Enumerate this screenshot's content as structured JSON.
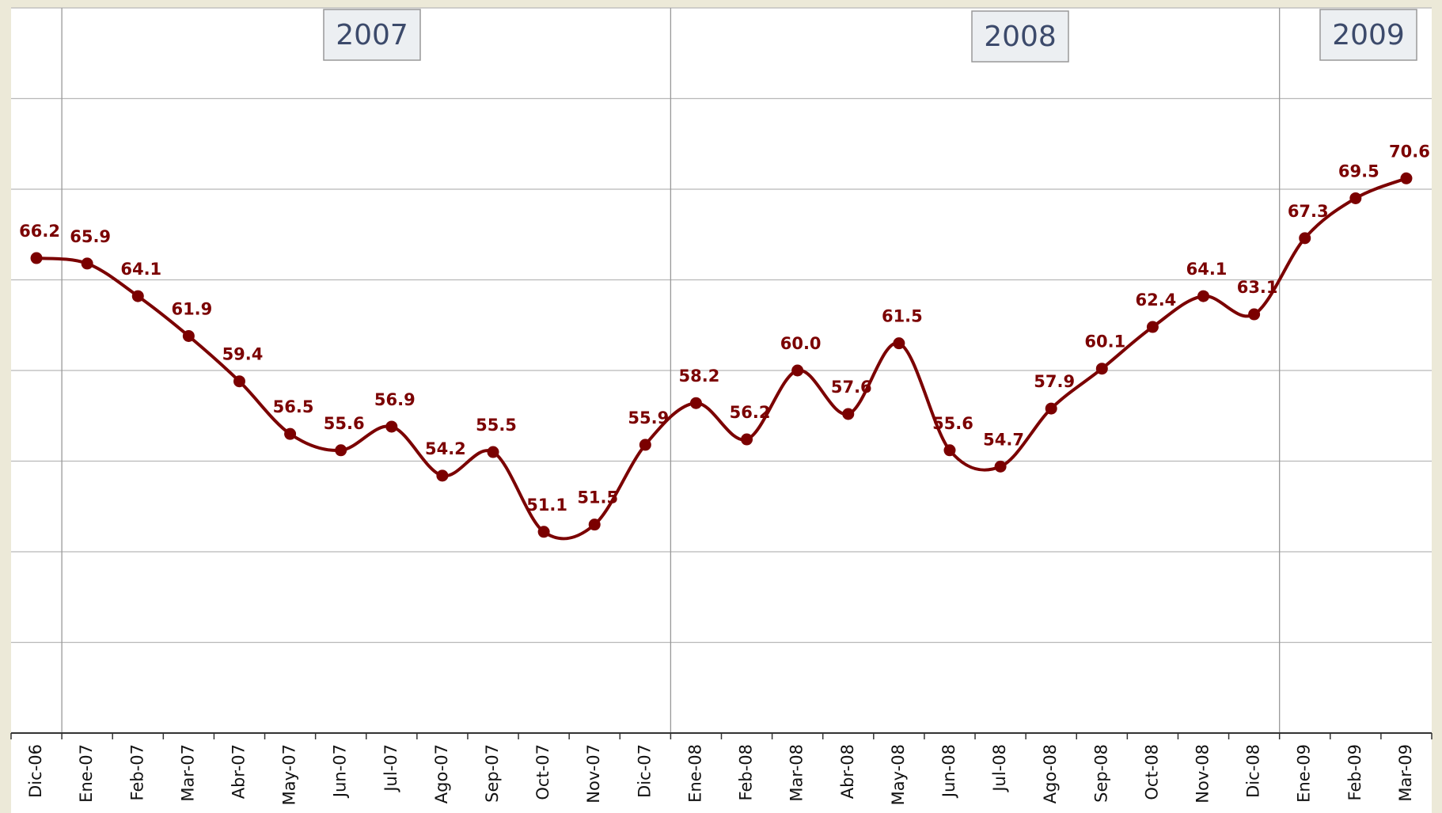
{
  "chart_data": {
    "type": "line",
    "categories": [
      "Dic-06",
      "Ene-07",
      "Feb-07",
      "Mar-07",
      "Abr-07",
      "May-07",
      "Jun-07",
      "Jul-07",
      "Ago-07",
      "Sep-07",
      "Oct-07",
      "Nov-07",
      "Dic-07",
      "Ene-08",
      "Feb-08",
      "Mar-08",
      "Abr-08",
      "May-08",
      "Jun-08",
      "Jul-08",
      "Ago-08",
      "Sep-08",
      "Oct-08",
      "Nov-08",
      "Dic-08",
      "Ene-09",
      "Feb-09",
      "Mar-09"
    ],
    "series": [
      {
        "color": "#7b0000",
        "values": [
          66.2,
          65.9,
          64.1,
          61.9,
          59.4,
          56.5,
          55.6,
          56.9,
          54.2,
          55.5,
          51.1,
          51.5,
          55.9,
          58.2,
          56.2,
          60.0,
          57.6,
          61.5,
          55.6,
          54.7,
          57.9,
          60.1,
          62.4,
          64.1,
          63.1,
          67.3,
          69.5,
          70.6
        ],
        "value_labels": [
          "66.2",
          "65.9",
          "64.1",
          "61.9",
          "59.4",
          "56.5",
          "55.6",
          "56.9",
          "54.2",
          "55.5",
          "51.1",
          "51.5",
          "55.9",
          "58.2",
          "56.2",
          "60.0",
          "57.6",
          "61.5",
          "55.6",
          "54.7",
          "57.9",
          "60.1",
          "62.4",
          "64.1",
          "63.1",
          "67.3",
          "69.5",
          "70.6"
        ]
      }
    ],
    "ylim": [
      40,
      80
    ],
    "yticks": [
      40,
      45,
      50,
      55,
      60,
      65,
      70,
      75,
      80
    ],
    "grid": true,
    "year_labels": [
      "2007",
      "2008",
      "2009"
    ]
  }
}
